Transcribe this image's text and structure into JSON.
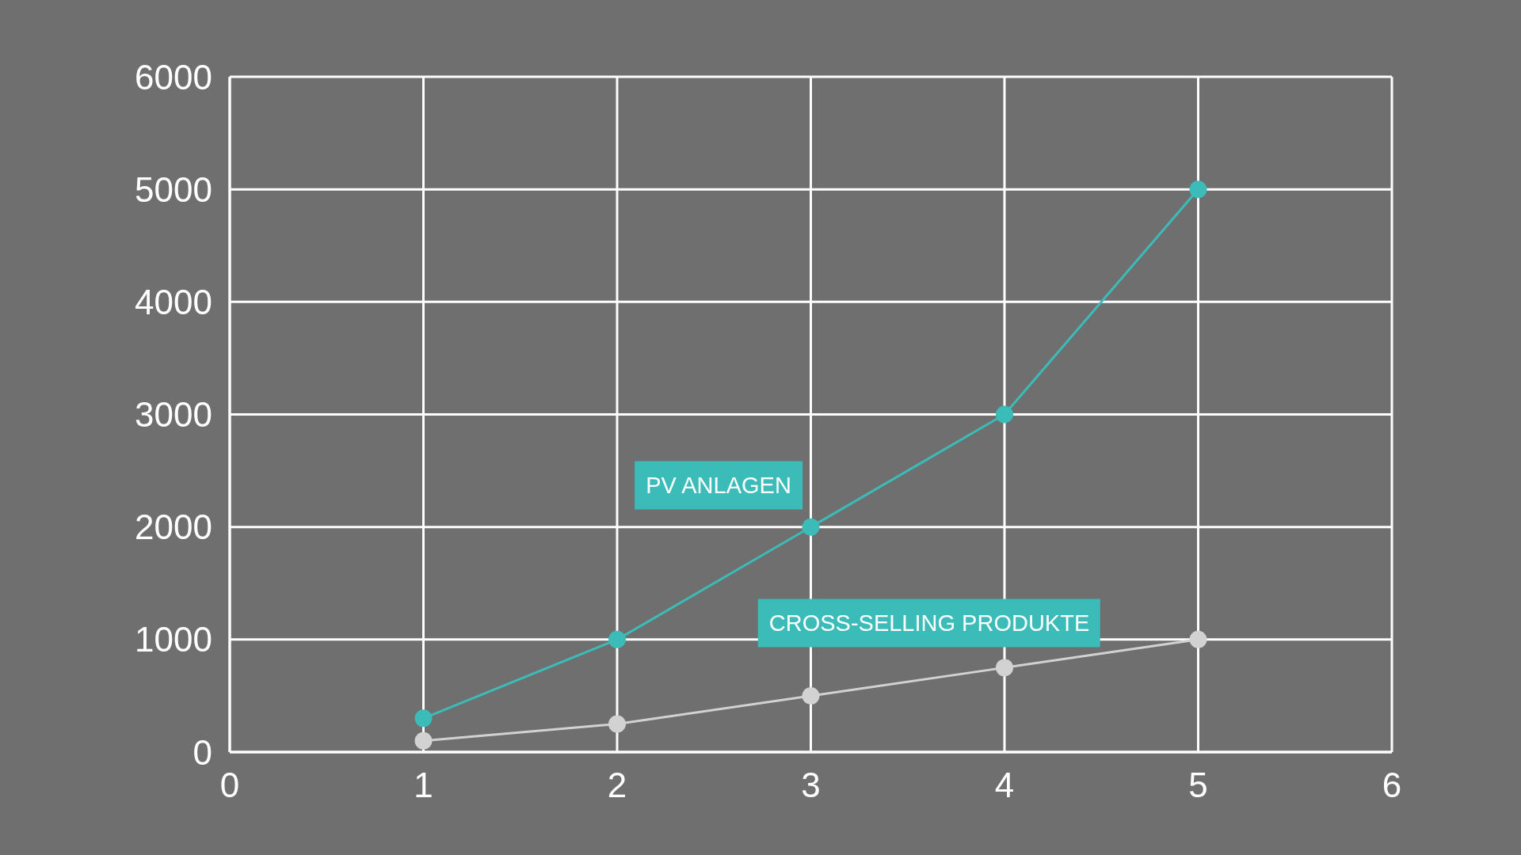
{
  "chart_data": {
    "type": "line",
    "x": [
      1,
      2,
      3,
      4,
      5
    ],
    "series": [
      {
        "name": "PV ANLAGEN",
        "color": "#3bbcb8",
        "values": [
          300,
          1000,
          2000,
          3000,
          5000
        ]
      },
      {
        "name": "CROSS-SELLING PRODUKTE",
        "color": "#d2d2d2",
        "values": [
          100,
          250,
          500,
          750,
          1000
        ]
      }
    ],
    "xlim": [
      0,
      6
    ],
    "xticks": [
      0,
      1,
      2,
      3,
      4,
      5,
      6
    ],
    "ylim": [
      0,
      6000
    ],
    "yticks": [
      0,
      1000,
      2000,
      3000,
      4000,
      5000,
      6000
    ],
    "grid": true,
    "marker": "circle",
    "line_style": "solid"
  }
}
